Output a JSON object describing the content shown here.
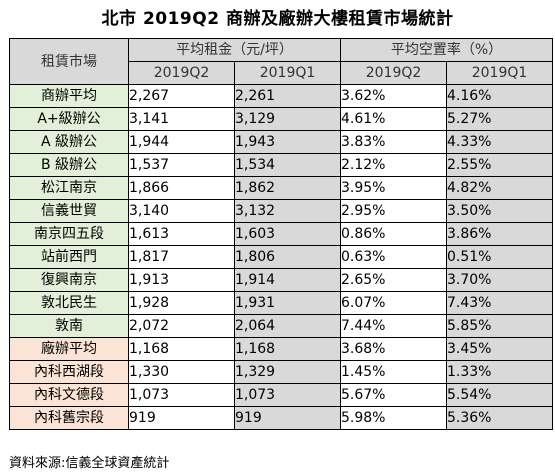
{
  "title": "北市 2019Q2 商辦及廠辦大樓租賃市場統計",
  "source": "資料來源:信義全球資產統計",
  "chart_data": {
    "type": "table",
    "title": "北市 2019Q2 商辦及廠辦大樓租賃市場統計",
    "header": {
      "market": "租賃市場",
      "rent_group": "平均租金（元/坪）",
      "vacancy_group": "平均空置率（%）",
      "periods": [
        "2019Q2",
        "2019Q1",
        "2019Q2",
        "2019Q1"
      ]
    },
    "rows": [
      {
        "market": "商辦平均",
        "group": "office",
        "rent_q2": "2,267",
        "rent_q1": "2,261",
        "vac_q2": "3.62%",
        "vac_q1": "4.16%"
      },
      {
        "market": "A+級辦公",
        "group": "office",
        "rent_q2": "3,141",
        "rent_q1": "3,129",
        "vac_q2": "4.61%",
        "vac_q1": "5.27%"
      },
      {
        "market": "A 級辦公",
        "group": "office",
        "rent_q2": "1,944",
        "rent_q1": "1,943",
        "vac_q2": "3.83%",
        "vac_q1": "4.33%"
      },
      {
        "market": "B 級辦公",
        "group": "office",
        "rent_q2": "1,537",
        "rent_q1": "1,534",
        "vac_q2": "2.12%",
        "vac_q1": "2.55%"
      },
      {
        "market": "松江南京",
        "group": "office",
        "rent_q2": "1,866",
        "rent_q1": "1,862",
        "vac_q2": "3.95%",
        "vac_q1": "4.82%"
      },
      {
        "market": "信義世貿",
        "group": "office",
        "rent_q2": "3,140",
        "rent_q1": "3,132",
        "vac_q2": "2.95%",
        "vac_q1": "3.50%"
      },
      {
        "market": "南京四五段",
        "group": "office",
        "rent_q2": "1,613",
        "rent_q1": "1,603",
        "vac_q2": "0.86%",
        "vac_q1": "3.86%"
      },
      {
        "market": "站前西門",
        "group": "office",
        "rent_q2": "1,817",
        "rent_q1": "1,806",
        "vac_q2": "0.63%",
        "vac_q1": "0.51%"
      },
      {
        "market": "復興南京",
        "group": "office",
        "rent_q2": "1,913",
        "rent_q1": "1,914",
        "vac_q2": "2.65%",
        "vac_q1": "3.70%"
      },
      {
        "market": "敦北民生",
        "group": "office",
        "rent_q2": "1,928",
        "rent_q1": "1,931",
        "vac_q2": "6.07%",
        "vac_q1": "7.43%"
      },
      {
        "market": "敦南",
        "group": "office",
        "rent_q2": "2,072",
        "rent_q1": "2,064",
        "vac_q2": "7.44%",
        "vac_q1": "5.85%"
      },
      {
        "market": "廠辦平均",
        "group": "plant",
        "rent_q2": "1,168",
        "rent_q1": "1,168",
        "vac_q2": "3.68%",
        "vac_q1": "3.45%"
      },
      {
        "market": "內科西湖段",
        "group": "plant",
        "rent_q2": "1,330",
        "rent_q1": "1,329",
        "vac_q2": "1.45%",
        "vac_q1": "1.33%"
      },
      {
        "market": "內科文德段",
        "group": "plant",
        "rent_q2": "1,073",
        "rent_q1": "1,073",
        "vac_q2": "5.67%",
        "vac_q1": "5.54%"
      },
      {
        "market": "內科舊宗段",
        "group": "plant",
        "rent_q2": "919",
        "rent_q1": "919",
        "vac_q2": "5.98%",
        "vac_q1": "5.36%"
      }
    ]
  }
}
